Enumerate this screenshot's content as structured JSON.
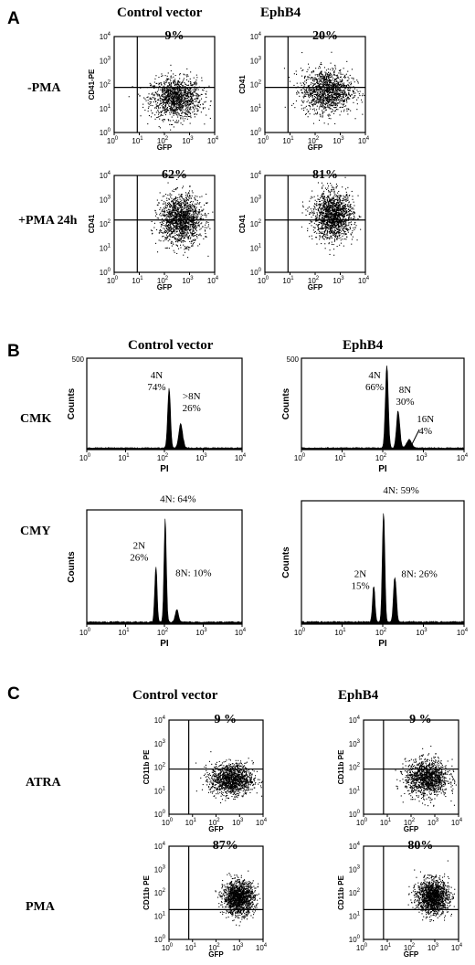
{
  "chart_data": [
    {
      "panel": "A",
      "type": "scatter",
      "columns": [
        "Control vector",
        "EphB4"
      ],
      "rows": [
        "-PMA",
        "+PMA 24h"
      ],
      "x_ticks": [
        "10",
        "1",
        "2",
        "3",
        "4"
      ],
      "y_ticks": [
        "10",
        "1",
        "2",
        "3",
        "4"
      ],
      "tick_base": "10",
      "tick_exps": [
        "0",
        "1",
        "2",
        "3",
        "4"
      ],
      "xlim": [
        1,
        10000
      ],
      "ylim": [
        1,
        10000
      ],
      "scale": "log",
      "plots": [
        {
          "col": 0,
          "row": 0,
          "xlabel": "GFP",
          "ylabel": "CD41-PE",
          "percent": "9%",
          "gate": [
            25,
            80
          ],
          "cloud": {
            "cx": 2.45,
            "cy": 1.45,
            "sx": 0.5,
            "sy": 0.42,
            "n": 1300
          }
        },
        {
          "col": 1,
          "row": 0,
          "xlabel": "GFP",
          "ylabel": "CD41",
          "percent": "20%",
          "gate": [
            25,
            80
          ],
          "cloud": {
            "cx": 2.45,
            "cy": 1.75,
            "sx": 0.5,
            "sy": 0.45,
            "n": 1300
          }
        },
        {
          "col": 0,
          "row": 1,
          "xlabel": "GFP",
          "ylabel": "CD41",
          "percent": "62%",
          "gate": [
            25,
            100
          ],
          "cloud": {
            "cx": 2.65,
            "cy": 2.2,
            "sx": 0.42,
            "sy": 0.5,
            "n": 1500
          }
        },
        {
          "col": 1,
          "row": 1,
          "xlabel": "GFP",
          "ylabel": "CD41",
          "percent": "81%",
          "gate": [
            25,
            100
          ],
          "cloud": {
            "cx": 2.7,
            "cy": 2.35,
            "sx": 0.4,
            "sy": 0.48,
            "n": 1500
          }
        }
      ]
    },
    {
      "panel": "B",
      "type": "histogram",
      "columns": [
        "Control vector",
        "EphB4"
      ],
      "rows": [
        "CMK",
        "CMY"
      ],
      "x_ticks": [
        "10",
        "1",
        "2",
        "3",
        "4"
      ],
      "tick_base": "10",
      "tick_exps": [
        "0",
        "1",
        "2",
        "3",
        "4"
      ],
      "xlim": [
        1,
        10000
      ],
      "scale": "log",
      "plots": [
        {
          "col": 0,
          "row": 0,
          "xlabel": "PI",
          "ylabel": "Counts",
          "ymax": 500,
          "y_ticks": [
            "500"
          ],
          "peaks": [
            {
              "x": 2.12,
              "h": 0.72,
              "w": 0.035
            },
            {
              "x": 2.42,
              "h": 0.28,
              "w": 0.05
            }
          ],
          "annotations": [
            {
              "lines": [
                "4N",
                "74%"
              ],
              "x": 1.8,
              "y": 0.78
            },
            {
              "lines": [
                ">8N",
                "26%"
              ],
              "x": 2.7,
              "y": 0.55
            }
          ]
        },
        {
          "col": 1,
          "row": 0,
          "xlabel": "PI",
          "ylabel": "Counts",
          "ymax": 500,
          "y_ticks": [
            "500"
          ],
          "peaks": [
            {
              "x": 2.1,
              "h": 1.0,
              "w": 0.035
            },
            {
              "x": 2.38,
              "h": 0.45,
              "w": 0.04
            },
            {
              "x": 2.65,
              "h": 0.1,
              "w": 0.06
            }
          ],
          "annotations": [
            {
              "lines": [
                "4N",
                "66%"
              ],
              "x": 1.8,
              "y": 0.78
            },
            {
              "lines": [
                "8N",
                "30%"
              ],
              "x": 2.55,
              "y": 0.62
            },
            {
              "lines": [
                "16N",
                "4%"
              ],
              "x": 3.05,
              "y": 0.3
            }
          ]
        },
        {
          "col": 0,
          "row": 1,
          "xlabel": "PI",
          "ylabel": "Counts",
          "ymax": null,
          "y_ticks": [],
          "peaks": [
            {
              "x": 1.78,
              "h": 0.55,
              "w": 0.03
            },
            {
              "x": 2.02,
              "h": 1.0,
              "w": 0.03
            },
            {
              "x": 2.32,
              "h": 0.12,
              "w": 0.04
            }
          ],
          "annotations": [
            {
              "lines": [
                "4N: 64%"
              ],
              "x": 2.35,
              "y": 1.07
            },
            {
              "lines": [
                "2N",
                "26%"
              ],
              "x": 1.35,
              "y": 0.66
            },
            {
              "lines": [
                "8N: 10%"
              ],
              "x": 2.75,
              "y": 0.42
            }
          ]
        },
        {
          "col": 1,
          "row": 1,
          "xlabel": "PI",
          "ylabel": "Counts",
          "ymax": null,
          "y_ticks": [],
          "peaks": [
            {
              "x": 1.78,
              "h": 0.32,
              "w": 0.03
            },
            {
              "x": 2.02,
              "h": 1.0,
              "w": 0.03
            },
            {
              "x": 2.3,
              "h": 0.4,
              "w": 0.035
            }
          ],
          "annotations": [
            {
              "lines": [
                "4N: 59%"
              ],
              "x": 2.45,
              "y": 1.06
            },
            {
              "lines": [
                "2N",
                "15%"
              ],
              "x": 1.45,
              "y": 0.38
            },
            {
              "lines": [
                "8N: 26%"
              ],
              "x": 2.9,
              "y": 0.38
            }
          ]
        }
      ]
    },
    {
      "panel": "C",
      "type": "scatter",
      "columns": [
        "Control vector",
        "EphB4"
      ],
      "rows": [
        "ATRA",
        "PMA"
      ],
      "x_ticks": [
        "10",
        "1",
        "2",
        "3",
        "4"
      ],
      "y_ticks": [
        "10",
        "1",
        "2",
        "3",
        "4"
      ],
      "tick_base": "10",
      "tick_exps": [
        "0",
        "1",
        "2",
        "3",
        "4"
      ],
      "xlim": [
        1,
        10000
      ],
      "ylim": [
        1,
        10000
      ],
      "scale": "log",
      "plots": [
        {
          "col": 0,
          "row": 0,
          "xlabel": "GFP",
          "ylabel": "CD11b PE",
          "percent": "9 %",
          "gate": [
            22,
            80
          ],
          "cloud": {
            "cx": 2.65,
            "cy": 1.5,
            "sx": 0.45,
            "sy": 0.33,
            "n": 1300
          }
        },
        {
          "col": 1,
          "row": 0,
          "xlabel": "GFP",
          "ylabel": "CD11b PE",
          "percent": "9 %",
          "gate": [
            22,
            80
          ],
          "cloud": {
            "cx": 2.65,
            "cy": 1.55,
            "sx": 0.45,
            "sy": 0.38,
            "n": 1300
          }
        },
        {
          "col": 0,
          "row": 1,
          "xlabel": "GFP",
          "ylabel": "CD11b PE",
          "percent": "87%",
          "gate": [
            22,
            22
          ],
          "cloud": {
            "cx": 2.95,
            "cy": 1.8,
            "sx": 0.33,
            "sy": 0.35,
            "n": 1500
          }
        },
        {
          "col": 1,
          "row": 1,
          "xlabel": "GFP",
          "ylabel": "CD11b PE",
          "percent": "80%",
          "gate": [
            22,
            22
          ],
          "cloud": {
            "cx": 2.9,
            "cy": 1.85,
            "sx": 0.33,
            "sy": 0.36,
            "n": 1500
          }
        }
      ]
    }
  ]
}
